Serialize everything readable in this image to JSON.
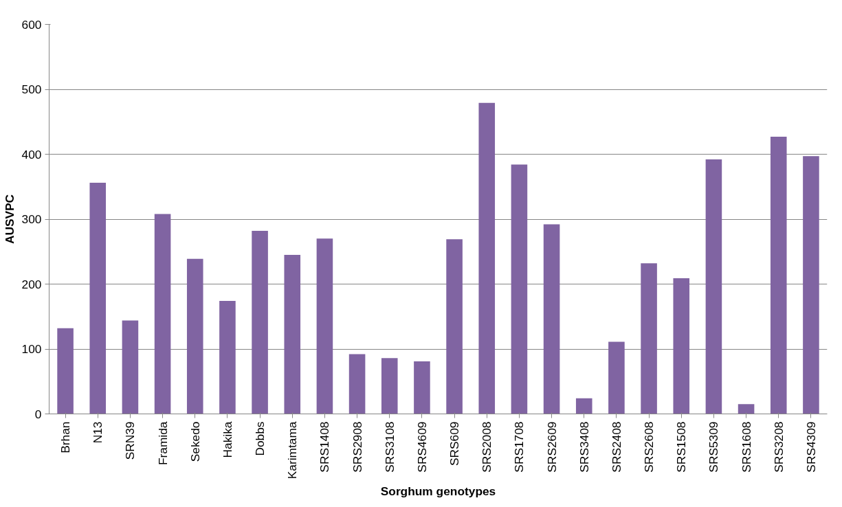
{
  "chart_data": {
    "type": "bar",
    "xlabel": "Sorghum genotypes",
    "ylabel": "AUSVPC",
    "categories": [
      "Brhan",
      "N13",
      "SRN39",
      "Framida",
      "Sekedo",
      "Hakika",
      "Dobbs",
      "Karimtama",
      "SRS1408",
      "SRS2908",
      "SRS3108",
      "SRS4609",
      "SRS609",
      "SRS2008",
      "SRS1708",
      "SRS2609",
      "SRS3408",
      "SRS2408",
      "SRS2608",
      "SRS1508",
      "SRS5309",
      "SRS1608",
      "SRS3208",
      "SRS4309"
    ],
    "values": [
      132,
      356,
      144,
      308,
      239,
      174,
      282,
      245,
      270,
      92,
      86,
      81,
      269,
      479,
      384,
      292,
      24,
      111,
      232,
      209,
      392,
      15,
      427,
      397
    ],
    "color": "#8064a2",
    "ylim": [
      0,
      600
    ],
    "yticks": [
      0,
      100,
      200,
      300,
      400,
      500,
      600
    ],
    "grid": "y"
  }
}
